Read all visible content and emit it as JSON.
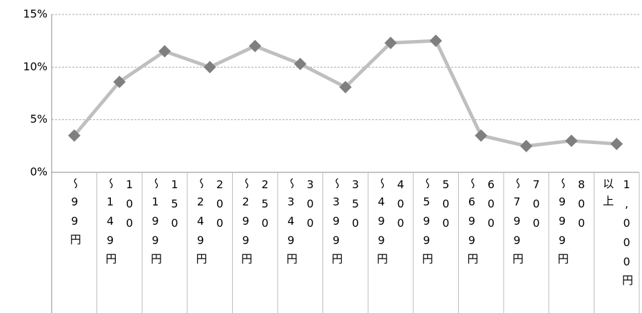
{
  "chart_data": {
    "type": "line",
    "categories": [
      "～99円",
      "100\n～149円",
      "150\n～199円",
      "200\n～249円",
      "250\n～299円",
      "300\n～349円",
      "350\n～399円",
      "400\n～499円",
      "500\n～599円",
      "600\n～699円",
      "700\n～799円",
      "800\n～999円",
      "1,000円\n以上"
    ],
    "values": [
      3.5,
      8.6,
      11.5,
      10.0,
      12.0,
      10.3,
      8.1,
      12.3,
      12.5,
      3.5,
      2.5,
      3.0,
      2.7
    ],
    "color": "#bfbfbf",
    "marker_color": "#7f7f7f",
    "ylim": [
      0,
      15
    ],
    "yticks": [
      {
        "value": 0,
        "label": "0%"
      },
      {
        "value": 5,
        "label": "5%"
      },
      {
        "value": 10,
        "label": "10%"
      },
      {
        "value": 15,
        "label": "15%"
      }
    ],
    "grid": true
  }
}
